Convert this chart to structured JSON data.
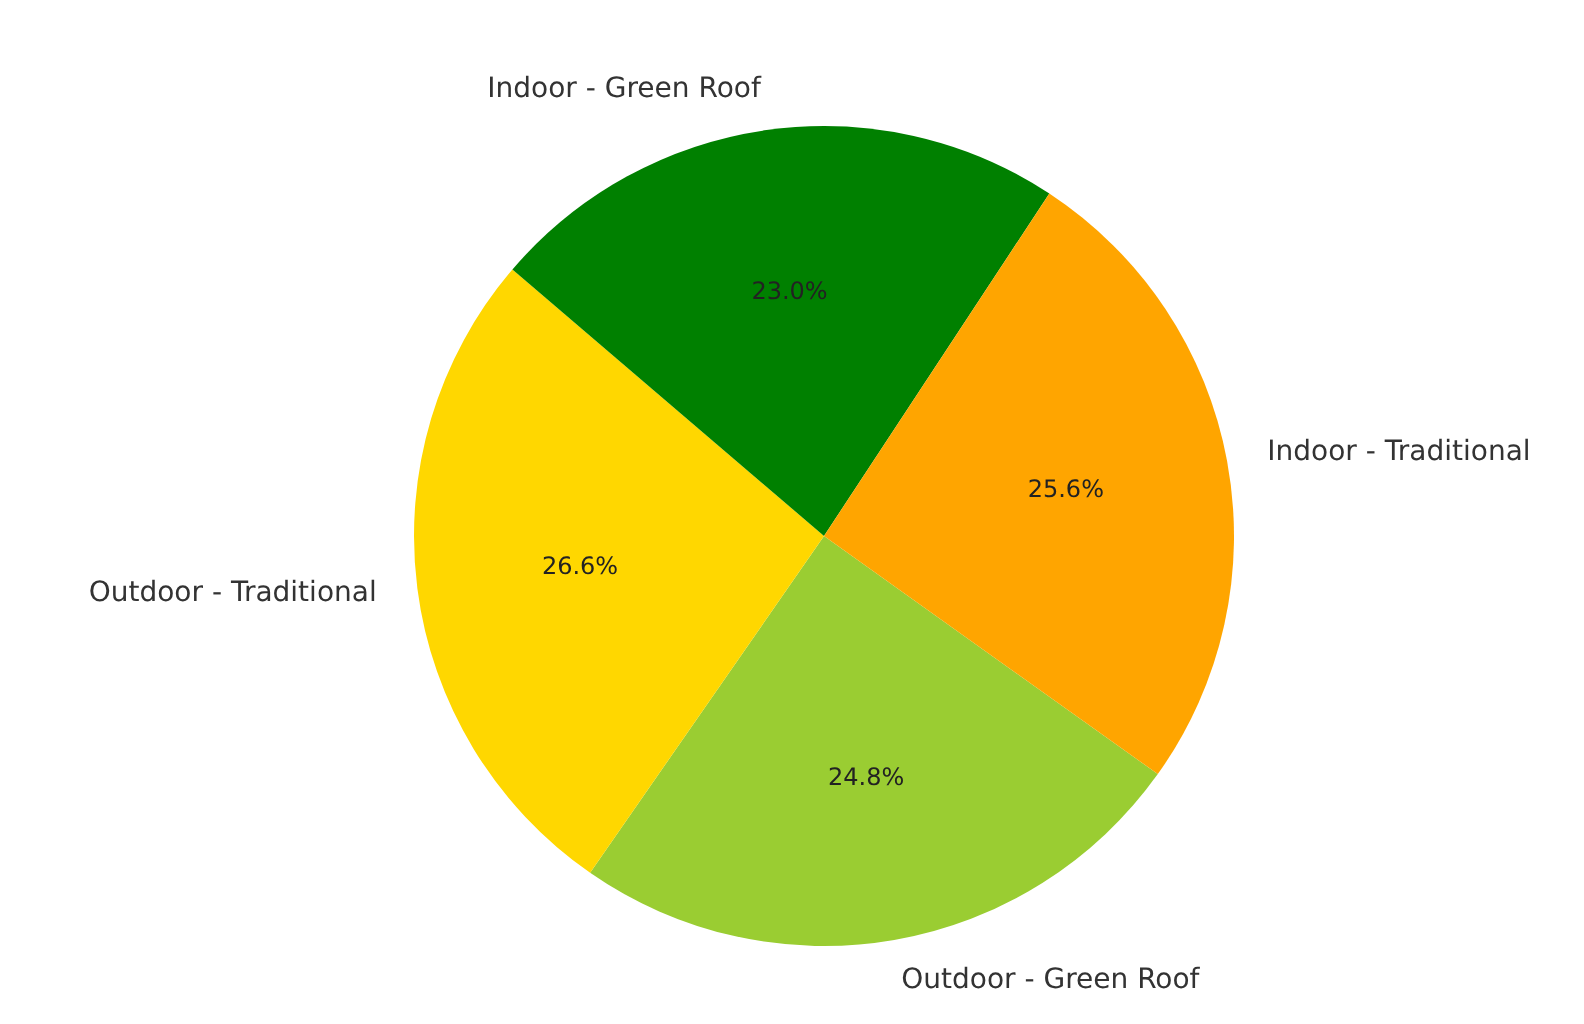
{
  "chart_data": {
    "type": "pie",
    "categories": [
      "Indoor - Traditional",
      "Indoor - Green Roof",
      "Outdoor - Traditional",
      "Outdoor - Green Roof"
    ],
    "values": [
      25.6,
      23.0,
      26.6,
      24.8
    ],
    "colors": [
      "#ffa500",
      "#008000",
      "#ffd700",
      "#9acd32"
    ],
    "value_labels": [
      "25.6%",
      "23.0%",
      "26.6%",
      "24.8%"
    ],
    "legend": false
  }
}
